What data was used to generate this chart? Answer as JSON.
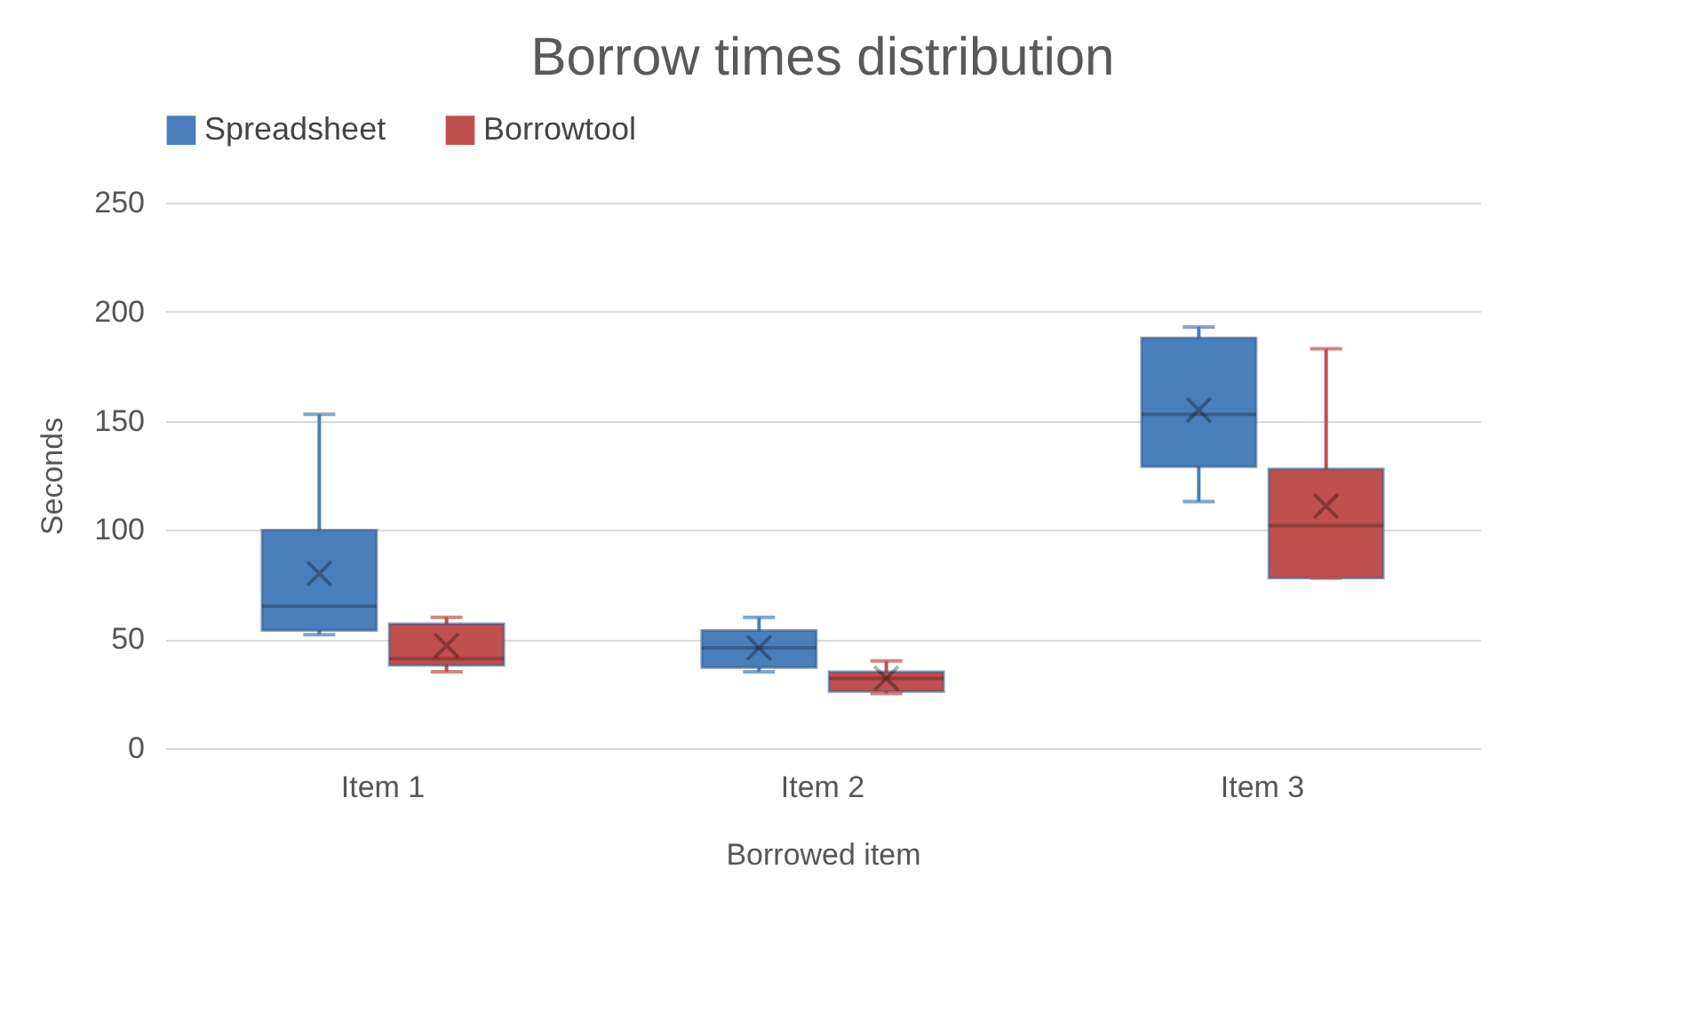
{
  "chart_data": {
    "type": "box",
    "title": "Borrow times distribution",
    "xlabel": "Borrowed item",
    "ylabel": "Seconds",
    "categories": [
      "Item 1",
      "Item 2",
      "Item 3"
    ],
    "series": [
      {
        "name": "Spreadsheet",
        "color": "#4a7ebb",
        "boxes": [
          {
            "low": 52,
            "q1": 54,
            "median": 65,
            "q3": 100,
            "high": 153,
            "mean": 80
          },
          {
            "low": 35,
            "q1": 37,
            "median": 46,
            "q3": 54,
            "high": 60,
            "mean": 46
          },
          {
            "low": 113,
            "q1": 129,
            "median": 153,
            "q3": 188,
            "high": 193,
            "mean": 155
          }
        ]
      },
      {
        "name": "Borrowtool",
        "color": "#c0504d",
        "boxes": [
          {
            "low": 35,
            "q1": 38,
            "median": 41,
            "q3": 57,
            "high": 60,
            "mean": 47
          },
          {
            "low": 25,
            "q1": 26,
            "median": 32,
            "q3": 35,
            "high": 40,
            "mean": 32
          },
          {
            "low": 78,
            "q1": 78,
            "median": 102,
            "q3": 128,
            "high": 183,
            "mean": 111
          }
        ]
      }
    ],
    "ylim": [
      0,
      250
    ],
    "yticks": [
      0,
      50,
      100,
      150,
      200,
      250
    ],
    "grid": "y",
    "legend": "top",
    "marker": "cross"
  }
}
